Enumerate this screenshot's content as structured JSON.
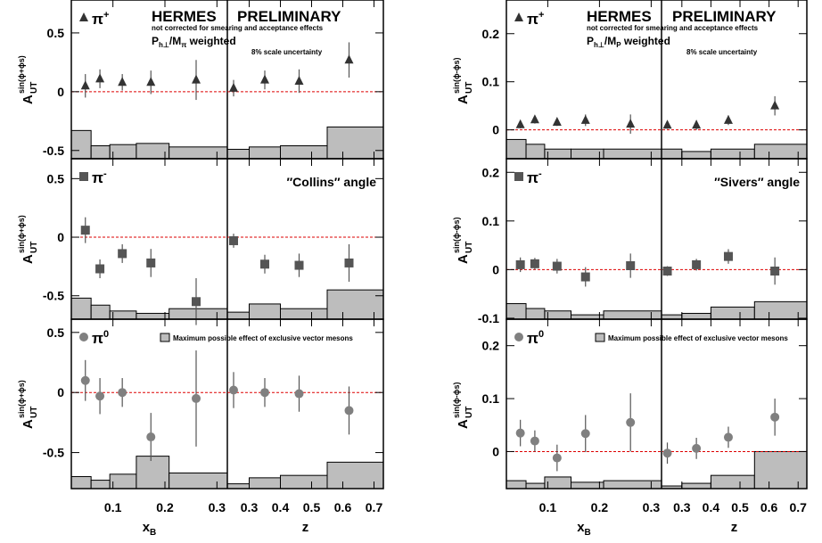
{
  "chart_data": [
    {
      "type": "scatter",
      "title": "HERMES",
      "subtitle": "PRELIMINARY",
      "note": "not corrected for smearing and acceptance effects",
      "weight": {
        "p": "P",
        "p_sub": "h⊥",
        "m": "/M",
        "m_sub": "π",
        "tail": " weighted"
      },
      "scale_note": "8% scale uncertainty",
      "angle_label": "″Collins″ angle",
      "legend_note": "Maximum possible effect of exclusive vector mesons",
      "band_color": "#bdbdbd",
      "ylabel": {
        "main": "A",
        "sup": "sin(ϕ+ϕs)",
        "sub": "UT"
      },
      "columns": [
        {
          "xlabel": {
            "main": "x",
            "sub": "B"
          },
          "xlim": [
            0.02,
            0.32
          ],
          "xticks": [
            0.1,
            0.2,
            0.3
          ],
          "band_edges": [
            0.02,
            0.058,
            0.094,
            0.145,
            0.208,
            0.32
          ]
        },
        {
          "xlabel": {
            "main": "z"
          },
          "xlim": [
            0.23,
            0.73
          ],
          "xticks": [
            0.3,
            0.4,
            0.5,
            0.6,
            0.7
          ],
          "band_edges": [
            0.23,
            0.3,
            0.4,
            0.55,
            0.73
          ]
        }
      ],
      "rows": [
        {
          "symbol": "π",
          "sup": "+",
          "marker": "triangle",
          "color": "#333333",
          "ylim": [
            -0.57,
            0.78
          ],
          "yticks": [
            -0.5,
            0,
            0.5
          ],
          "panels": [
            {
              "x": [
                0.047,
                0.075,
                0.118,
                0.173,
                0.26
              ],
              "values": [
                0.05,
                0.11,
                0.08,
                0.08,
                0.1
              ],
              "errors": [
                0.1,
                0.08,
                0.07,
                0.1,
                0.17
              ],
              "band": [
                0.24,
                0.11,
                0.12,
                0.13,
                0.1
              ]
            },
            {
              "x": [
                0.25,
                0.35,
                0.46,
                0.62
              ],
              "values": [
                0.03,
                0.1,
                0.09,
                0.27
              ],
              "errors": [
                0.07,
                0.08,
                0.1,
                0.15
              ],
              "band": [
                0.08,
                0.1,
                0.11,
                0.27
              ]
            }
          ]
        },
        {
          "symbol": "π",
          "sup": "-",
          "marker": "square",
          "color": "#555555",
          "ylim": [
            -0.7,
            0.67
          ],
          "yticks": [
            -0.5,
            0,
            0.5
          ],
          "panels": [
            {
              "x": [
                0.047,
                0.075,
                0.118,
                0.173,
                0.26
              ],
              "values": [
                0.06,
                -0.27,
                -0.14,
                -0.22,
                -0.55
              ],
              "errors": [
                0.11,
                0.08,
                0.08,
                0.12,
                0.2
              ],
              "band": [
                0.18,
                0.12,
                0.07,
                0.05,
                0.09
              ]
            },
            {
              "x": [
                0.25,
                0.35,
                0.46,
                0.62
              ],
              "values": [
                -0.03,
                -0.23,
                -0.24,
                -0.22
              ],
              "errors": [
                0.06,
                0.08,
                0.1,
                0.16
              ],
              "band": [
                0.06,
                0.13,
                0.09,
                0.25
              ]
            }
          ]
        },
        {
          "symbol": "π",
          "sup": "0",
          "marker": "circle",
          "color": "#808080",
          "ylim": [
            -0.8,
            0.61
          ],
          "yticks": [
            -0.5,
            0,
            0.5
          ],
          "panels": [
            {
              "x": [
                0.047,
                0.075,
                0.118,
                0.173,
                0.26
              ],
              "values": [
                0.1,
                -0.03,
                0.0,
                -0.37,
                -0.05
              ],
              "errors": [
                0.17,
                0.15,
                0.12,
                0.2,
                0.4
              ],
              "band": [
                0.1,
                0.07,
                0.12,
                0.27,
                0.13
              ]
            },
            {
              "x": [
                0.25,
                0.35,
                0.46,
                0.62
              ],
              "values": [
                0.02,
                0.0,
                -0.01,
                -0.15
              ],
              "errors": [
                0.15,
                0.12,
                0.15,
                0.2
              ],
              "band": [
                0.04,
                0.09,
                0.11,
                0.22
              ]
            }
          ]
        }
      ]
    },
    {
      "type": "scatter",
      "title": "HERMES",
      "subtitle": "PRELIMINARY",
      "note": "not corrected for smearing and acceptance effects",
      "weight": {
        "p": "P",
        "p_sub": "h⊥",
        "m": "/M",
        "m_sub": "P",
        "tail": " weighted"
      },
      "scale_note": "8% scale uncertainty",
      "angle_label": "″Sivers″ angle",
      "legend_note": "Maximum possible effect of exclusive vector mesons",
      "band_color": "#bdbdbd",
      "ylabel": {
        "main": "A",
        "sup": "sin(ϕ-ϕs)",
        "sub": "UT"
      },
      "columns": [
        {
          "xlabel": {
            "main": "x",
            "sub": "B"
          },
          "xlim": [
            0.02,
            0.32
          ],
          "xticks": [
            0.1,
            0.2,
            0.3
          ],
          "band_edges": [
            0.02,
            0.058,
            0.094,
            0.145,
            0.208,
            0.32
          ]
        },
        {
          "xlabel": {
            "main": "z"
          },
          "xlim": [
            0.23,
            0.73
          ],
          "xticks": [
            0.3,
            0.4,
            0.5,
            0.6,
            0.7
          ],
          "band_edges": [
            0.23,
            0.3,
            0.4,
            0.55,
            0.73
          ]
        }
      ],
      "rows": [
        {
          "symbol": "π",
          "sup": "+",
          "marker": "triangle",
          "color": "#333333",
          "ylim": [
            -0.06,
            0.27
          ],
          "yticks": [
            0,
            0.1,
            0.2
          ],
          "panels": [
            {
              "x": [
                0.047,
                0.075,
                0.118,
                0.173,
                0.26
              ],
              "values": [
                0.011,
                0.021,
                0.016,
                0.02,
                0.012
              ],
              "errors": [
                0.008,
                0.008,
                0.008,
                0.012,
                0.02
              ],
              "band": [
                0.04,
                0.03,
                0.02,
                0.02,
                0.02
              ]
            },
            {
              "x": [
                0.25,
                0.35,
                0.46,
                0.62
              ],
              "values": [
                0.01,
                0.01,
                0.02,
                0.05
              ],
              "errors": [
                0.008,
                0.01,
                0.01,
                0.02
              ],
              "band": [
                0.02,
                0.015,
                0.02,
                0.03
              ]
            }
          ]
        },
        {
          "symbol": "π",
          "sup": "-",
          "marker": "square",
          "color": "#555555",
          "ylim": [
            -0.102,
            0.228
          ],
          "yticks": [
            -0.1,
            0,
            0.1,
            0.2
          ],
          "panels": [
            {
              "x": [
                0.047,
                0.075,
                0.118,
                0.173,
                0.26
              ],
              "values": [
                0.01,
                0.012,
                0.007,
                -0.015,
                0.008
              ],
              "errors": [
                0.015,
                0.012,
                0.015,
                0.02,
                0.025
              ],
              "band": [
                0.032,
                0.022,
                0.017,
                0.009,
                0.017
              ]
            },
            {
              "x": [
                0.25,
                0.35,
                0.46,
                0.62
              ],
              "values": [
                -0.003,
                0.01,
                0.027,
                -0.003
              ],
              "errors": [
                0.01,
                0.012,
                0.015,
                0.028
              ],
              "band": [
                0.009,
                0.012,
                0.025,
                0.036
              ]
            }
          ]
        },
        {
          "symbol": "π",
          "sup": "0",
          "marker": "circle",
          "color": "#808080",
          "ylim": [
            -0.07,
            0.25
          ],
          "yticks": [
            0,
            0.1,
            0.2
          ],
          "panels": [
            {
              "x": [
                0.047,
                0.075,
                0.118,
                0.173,
                0.26
              ],
              "values": [
                0.035,
                0.02,
                -0.012,
                0.034,
                0.055
              ],
              "errors": [
                0.025,
                0.02,
                0.025,
                0.035,
                0.055
              ],
              "band": [
                0.015,
                0.01,
                0.022,
                0.012,
                0.015
              ]
            },
            {
              "x": [
                0.25,
                0.35,
                0.46,
                0.62
              ],
              "values": [
                -0.003,
                0.006,
                0.027,
                0.065
              ],
              "errors": [
                0.02,
                0.02,
                0.02,
                0.035
              ],
              "band": [
                0.005,
                0.01,
                0.025,
                0.07
              ]
            }
          ]
        }
      ]
    }
  ]
}
